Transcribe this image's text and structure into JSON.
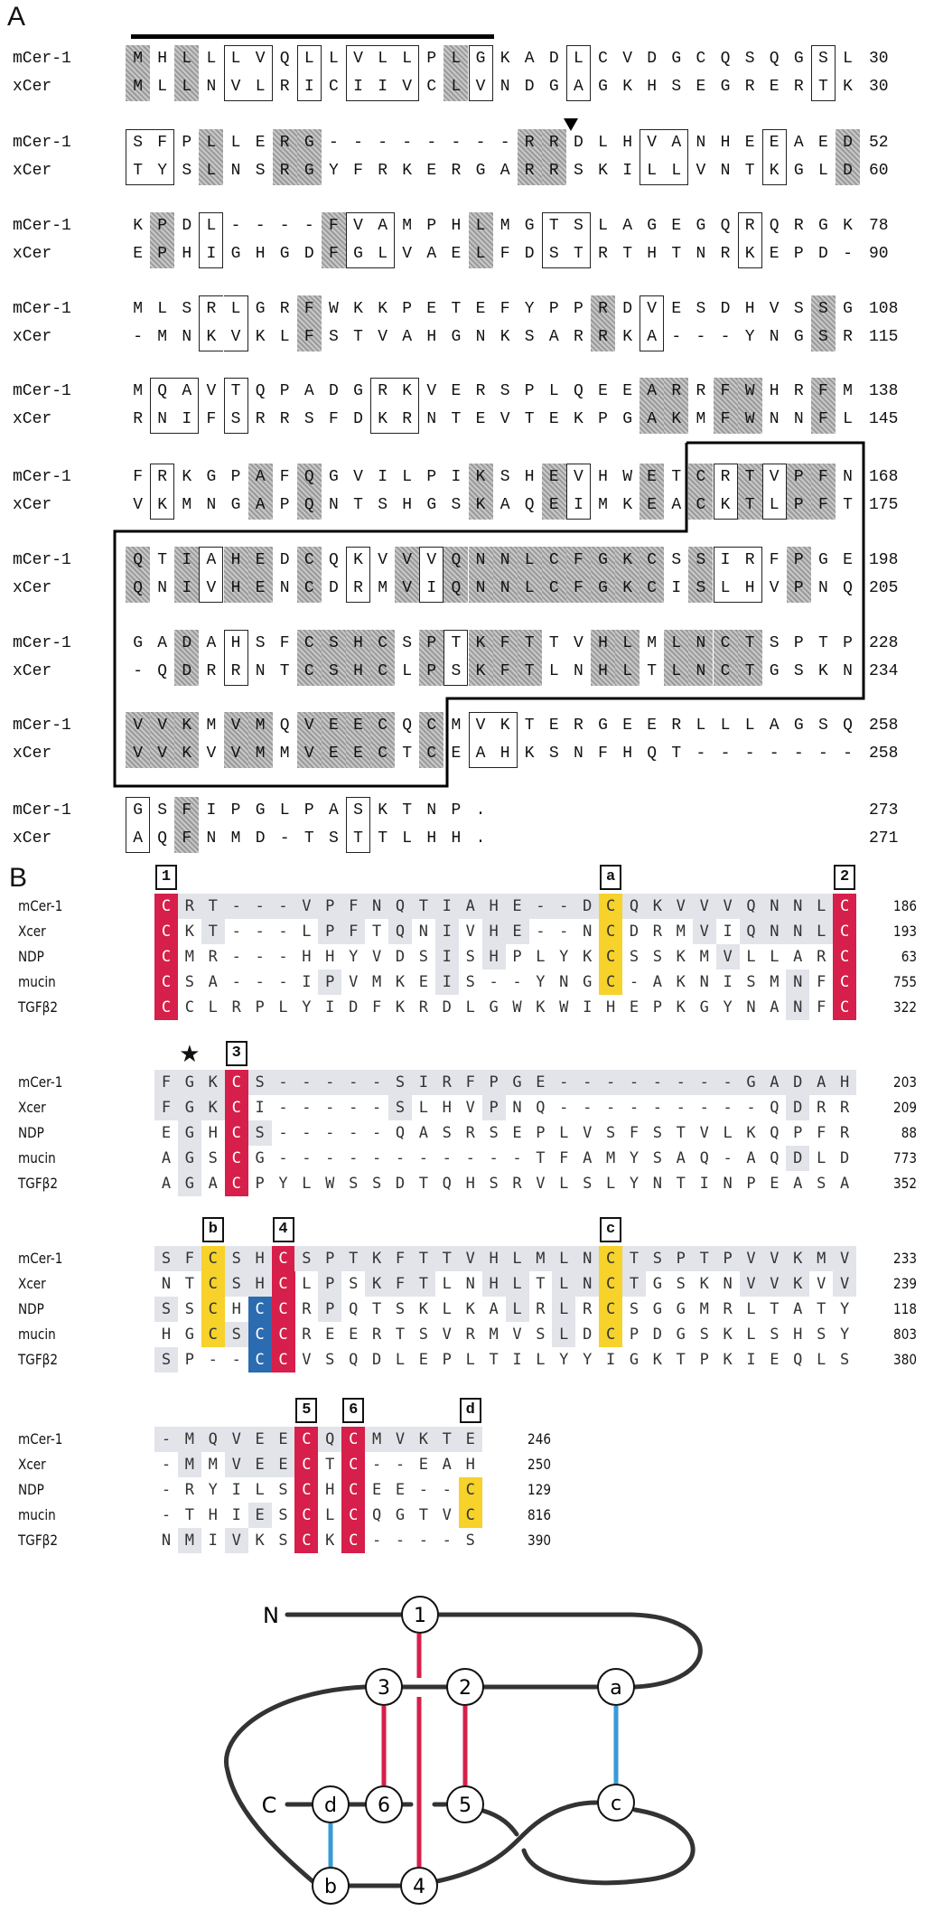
{
  "panel_a": {
    "label": "A",
    "blocks": [
      {
        "rows": [
          {
            "name": "mCer-1",
            "seq": "MHLLLVQLLVLLPLGKADLCVDGCQSQGSL",
            "end": "30"
          },
          {
            "name": "xCer",
            "seq": "MLLNVLRICIIVCLVNDGAGKHSEGRERTK",
            "end": "30"
          }
        ],
        "marks": "s.s.bb.b.bbb.sb...b.........b."
      },
      {
        "rows": [
          {
            "name": "mCer-1",
            "seq": "SFPLLERG--------RRDLHVANHEEAED",
            "end": "52"
          },
          {
            "name": "xCer",
            "seq": "TYSLNSRGYFRKERGARRSKILLVNTKGLD",
            "end": "60"
          }
        ],
        "marks": "bb.s..ss........ss...bb...b..s"
      },
      {
        "rows": [
          {
            "name": "mCer-1",
            "seq": "KPDL----FVAMPHLMGTSLAGEGQRQRGK",
            "end": "78"
          },
          {
            "name": "xCer",
            "seq": "EPHIGHGDFGLVAELFDSTRTHTNRKEPD-",
            "end": "90"
          }
        ],
        "marks": ".s.b....sbb...s..bb......b...."
      },
      {
        "rows": [
          {
            "name": "mCer-1",
            "seq": "MLSRLGRFWKKPETEFYPPRDVESDHVSSG",
            "end": "108"
          },
          {
            "name": "xCer",
            "seq": "-MNKVKLFSTVAHGNKSARRKA---YNGSR",
            "end": "115"
          }
        ],
        "marks": "...bb..s...........s.b......s."
      },
      {
        "rows": [
          {
            "name": "mCer-1",
            "seq": "MQAVTQPADGRKVERSPLQEEARRFWHRFM",
            "end": "138"
          },
          {
            "name": "xCer",
            "seq": "RNIFSRRSFDKRNTEVTEKPGAKMFWNNFL",
            "end": "145"
          }
        ],
        "marks": ".bb.b.....bb.........ss.ss..s."
      },
      {
        "rows": [
          {
            "name": "mCer-1",
            "seq": "FRKGPAFQGVILPIKSHEVHWETCRTVPFN",
            "end": "168"
          },
          {
            "name": "xCer",
            "seq": "VKMNGAPQNTSHGSKAQEIMKEACKTLPFT",
            "end": "175"
          }
        ],
        "marks": ".b...s.s......s..sb..s.sbsbss."
      },
      {
        "rows": [
          {
            "name": "mCer-1",
            "seq": "QTIAHEDCQKVVVQNNLCFGKCSSIRFPGE",
            "end": "198"
          },
          {
            "name": "xCer",
            "seq": "QNIVHENCDRMVIQNNLCFGKCISLHVPNQ",
            "end": "205"
          }
        ],
        "marks": "s.sbss.s.b.sbsssssssss.sbb.s.."
      },
      {
        "rows": [
          {
            "name": "mCer-1",
            "seq": "GADAHSFCSHCSPTKFTTVHLMLNCTSPTP",
            "end": "228"
          },
          {
            "name": "xCer",
            "seq": "-QDRRNTCSHCLPSKFTLNHLTLNCTGSKN",
            "end": "234"
          }
        ],
        "marks": "..s.b..ssss.sbsss..ss.ssss...."
      },
      {
        "rows": [
          {
            "name": "mCer-1",
            "seq": "VVKMVMQVEECQCMVKTERGEERLLLAGSQ",
            "end": "258"
          },
          {
            "name": "xCer",
            "seq": "VVKVVMMVEECTCEAHKSNFHQT-------",
            "end": "258"
          }
        ],
        "marks": "sss.ss.ssss.s.bb.............."
      },
      {
        "rows": [
          {
            "name": "mCer-1",
            "seq": "GSFIPGLPASKTNP.",
            "end": "273"
          },
          {
            "name": "xCer",
            "seq": "AQFNMD-TSTTLHH.",
            "end": "271"
          }
        ],
        "marks": "b.s......b....."
      }
    ]
  },
  "panel_b": {
    "label": "B",
    "blocks": [
      {
        "labels": [
          {
            "text": "1",
            "col": 1
          },
          {
            "text": "a",
            "col": 20
          },
          {
            "text": "2",
            "col": 30
          }
        ],
        "rows": [
          {
            "name": "mCer-1",
            "seq": "CRT---VPFNQTIAHE--DCQKVVVQNNLC",
            "end": "186",
            "colors": "r..................y.........r"
          },
          {
            "name": "Xcer",
            "seq": "CKT---LPFTQNIVHE--NCDRMVIQNNLC",
            "end": "193",
            "colors": "r..................y.........r"
          },
          {
            "name": "NDP",
            "seq": "CMR---HHYVDSISHPLYKCSSKMVLLARC",
            "end": "63",
            "colors": "r..................y.........r"
          },
          {
            "name": "mucin",
            "seq": "CSA---IPVMKEIS--YNGC-AKNISMNFC",
            "end": "755",
            "colors": "r..................y.........r"
          },
          {
            "name": "TGFβ2",
            "seq": "CCLRPLYIDFKRDLGWKWIHEPKGYNANFC",
            "end": "322",
            "colors": "r............................r"
          }
        ]
      },
      {
        "labels": [
          {
            "text": "★",
            "col": 2,
            "star": true
          },
          {
            "text": "3",
            "col": 4
          }
        ],
        "rows": [
          {
            "name": "mCer-1",
            "seq": "FGKCS-----SIRFPGE--------GADAH",
            "end": "203",
            "colors": "...r.........................."
          },
          {
            "name": "Xcer",
            "seq": "FGKCI-----SLHVPNQ---------QDRR",
            "end": "209",
            "colors": "...r.........................."
          },
          {
            "name": "NDP",
            "seq": "EGHCS-----QASRSEPLVSFSTVLKQPFR",
            "end": "88",
            "colors": "...r.........................."
          },
          {
            "name": "mucin",
            "seq": "AGSCG-----------TFAMYSAQ-AQDLD",
            "end": "773",
            "colors": "...r.........................."
          },
          {
            "name": "TGFβ2",
            "seq": "AGACPYLWSSDTQHSRVLSLYNTINPEASA",
            "end": "352",
            "colors": "...r.........................."
          }
        ]
      },
      {
        "labels": [
          {
            "text": "b",
            "col": 3
          },
          {
            "text": "4",
            "col": 6
          },
          {
            "text": "c",
            "col": 20
          }
        ],
        "rows": [
          {
            "name": "mCer-1",
            "seq": "SFCSHCSPTKFTTVHLMLNCTSPTPVVKMV",
            "end": "233",
            "colors": "..y..r.............y.........."
          },
          {
            "name": "Xcer",
            "seq": "NTCSHCLPSKFTLNHLTLNCTGSKNVVKVV",
            "end": "239",
            "colors": "..y..r.............y.........."
          },
          {
            "name": "NDP",
            "seq": "SSCHCCRPQTSKLKALRLRCSGGMRLTATY",
            "end": "118",
            "colors": "..y.ur.............y.........."
          },
          {
            "name": "mucin",
            "seq": "HGCSCCREERTSVRMVSLDCPDGSKLSHSY",
            "end": "803",
            "colors": "..y.ur.............y.........."
          },
          {
            "name": "TGFβ2",
            "seq": "SP--CCVSQDLEPLTILYYIGKTPKIEQLS",
            "end": "380",
            "colors": "....ur........................"
          }
        ]
      },
      {
        "labels": [
          {
            "text": "5",
            "col": 7
          },
          {
            "text": "6",
            "col": 9
          },
          {
            "text": "d",
            "col": 14
          }
        ],
        "rows": [
          {
            "name": "mCer-1",
            "seq": "-MQVEECQCMVKTE",
            "end": "246",
            "colors": "......r.r....."
          },
          {
            "name": "Xcer",
            "seq": "-MMVEECTC--EAH",
            "end": "250",
            "colors": "......r.r....."
          },
          {
            "name": "NDP",
            "seq": "-RYILSCHCEE--C",
            "end": "129",
            "colors": "......r.r....y"
          },
          {
            "name": "mucin",
            "seq": "-THIESCLCQGTVC",
            "end": "816",
            "colors": "......r.r....y"
          },
          {
            "name": "TGFβ2",
            "seq": "NMIVKSCKC----S",
            "end": "390",
            "colors": "......r.r....."
          }
        ]
      }
    ]
  },
  "diagram": {
    "n_label": "N",
    "c_label": "C",
    "nodes": {
      "n1": "1",
      "n2": "2",
      "n3": "3",
      "n4": "4",
      "n5": "5",
      "n6": "6",
      "na": "a",
      "nb": "b",
      "nc": "c",
      "nd": "d"
    },
    "colors": {
      "cys_bond": "#d61f4a",
      "extra_bond": "#3a9ad6"
    }
  }
}
